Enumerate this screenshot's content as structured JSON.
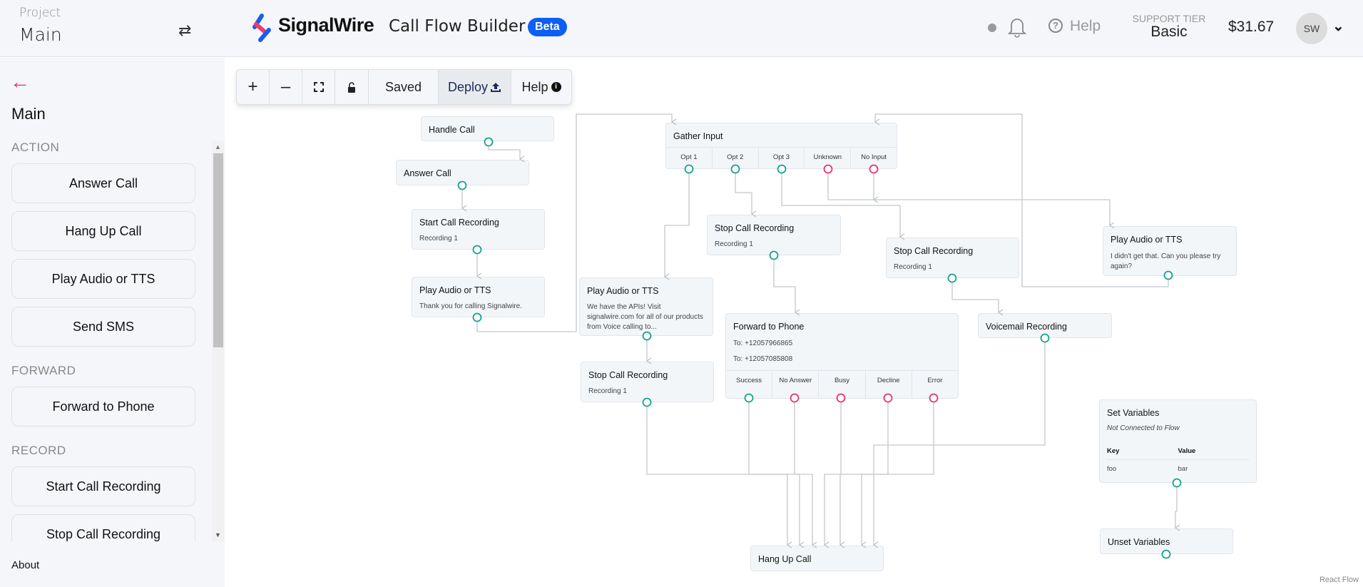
{
  "header": {
    "project_label": "Project",
    "project_name": "Main",
    "brand": "SignalWire",
    "app_title": "Call Flow Builder",
    "badge": "Beta",
    "help": "Help",
    "support_tier_label": "SUPPORT TIER",
    "support_tier": "Basic",
    "balance": "$31.67",
    "avatar_initials": "SW"
  },
  "sidebar": {
    "title": "Main",
    "sections": [
      {
        "label": "ACTION",
        "items": [
          "Answer Call",
          "Hang Up Call",
          "Play Audio or TTS",
          "Send SMS"
        ]
      },
      {
        "label": "FORWARD",
        "items": [
          "Forward to Phone"
        ]
      },
      {
        "label": "RECORD",
        "items": [
          "Start Call Recording",
          "Stop Call Recording"
        ]
      }
    ],
    "about": "About"
  },
  "toolbar": {
    "saved": "Saved",
    "deploy": "Deploy",
    "help": "Help"
  },
  "nodes": {
    "handle_call": {
      "title": "Handle Call"
    },
    "answer_call": {
      "title": "Answer Call"
    },
    "start_rec": {
      "title": "Start Call Recording",
      "sub": "Recording 1"
    },
    "play1": {
      "title": "Play Audio or TTS",
      "sub": "Thank you for calling Signalwire."
    },
    "gather": {
      "title": "Gather Input",
      "options": [
        "Opt 1",
        "Opt 2",
        "Opt 3",
        "Unknown",
        "No Input"
      ]
    },
    "play2": {
      "title": "Play Audio or TTS",
      "sub": "We have the APIs! Visit signalwire.com for all of our products from Voice calling to..."
    },
    "stop_a": {
      "title": "Stop Call Recording",
      "sub": "Recording 1"
    },
    "stop_b": {
      "title": "Stop Call Recording",
      "sub": "Recording 1"
    },
    "stop_c": {
      "title": "Stop Call Recording",
      "sub": "Recording 1"
    },
    "play3": {
      "title": "Play Audio or TTS",
      "sub": "I didn't get that. Can you please try again?"
    },
    "forward": {
      "title": "Forward to Phone",
      "to1": "To: +12057966865",
      "to2": "To: +12057085808",
      "options": [
        "Success",
        "No Answer",
        "Busy",
        "Decline",
        "Error"
      ]
    },
    "voicemail": {
      "title": "Voicemail Recording"
    },
    "setvars": {
      "title": "Set Variables",
      "note": "Not Connected to Flow",
      "key_header": "Key",
      "value_header": "Value",
      "key": "foo",
      "value": "bar"
    },
    "unsetvars": {
      "title": "Unset Variables"
    },
    "hangup": {
      "title": "Hang Up Call"
    }
  },
  "attribution": "React Flow",
  "colors": {
    "accent": "#0d5ef5",
    "success_handle": "#14a38b",
    "failure_handle": "#e8336a",
    "back_arrow": "#ea2e6b"
  }
}
